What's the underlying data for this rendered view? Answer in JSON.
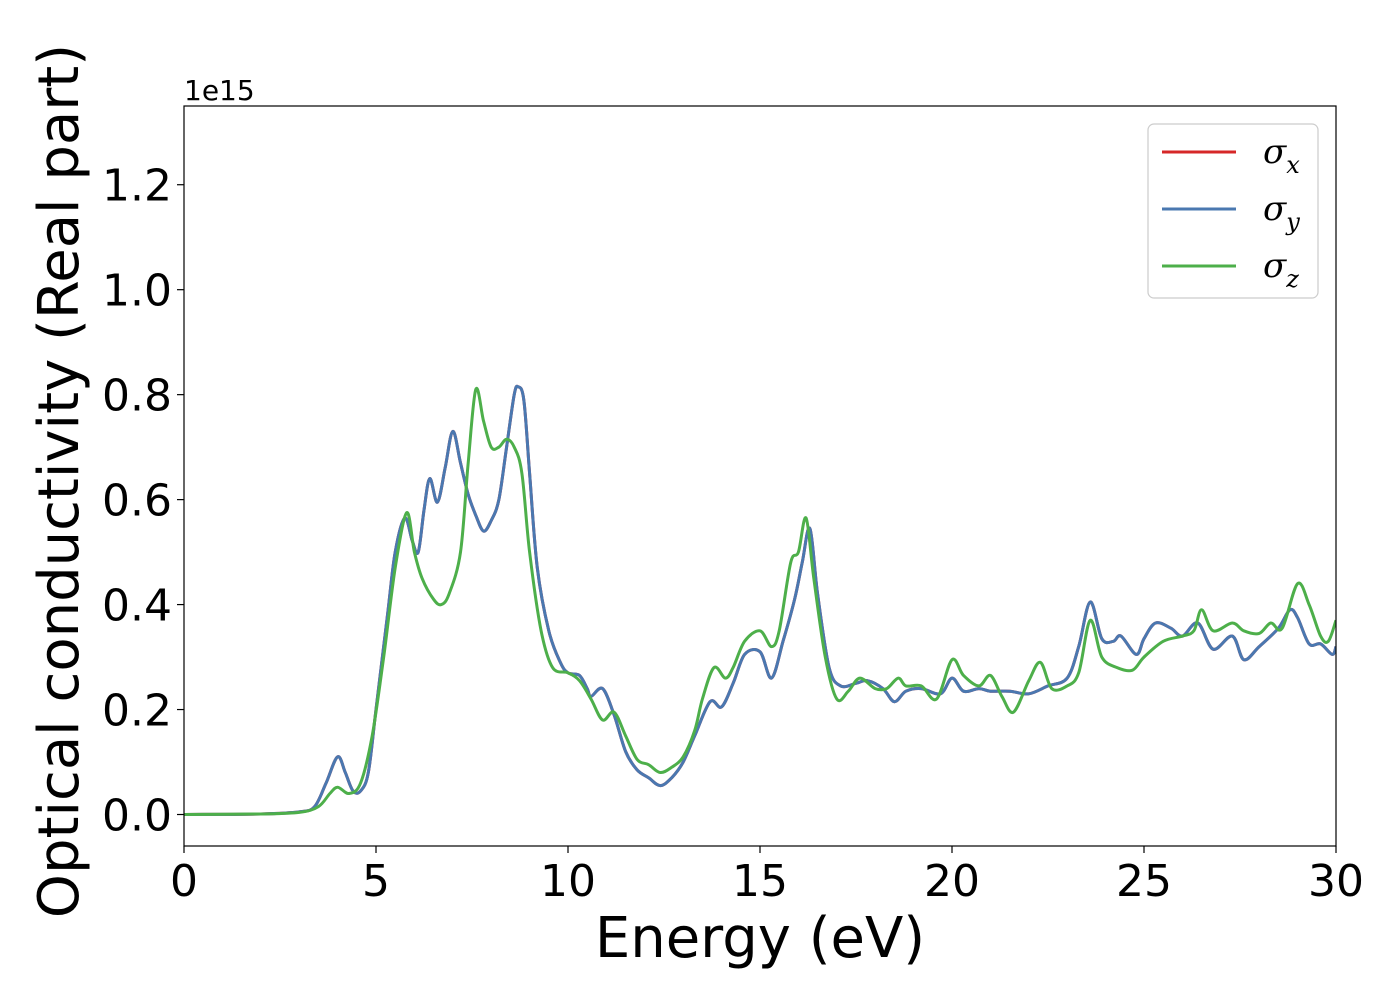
{
  "chart_data": {
    "type": "line",
    "xlabel": "Energy (eV)",
    "ylabel": "Optical conductivity (Real part)",
    "offset_text": "1e15",
    "xlim": [
      0,
      30
    ],
    "ylim": [
      -0.06,
      1.35
    ],
    "x_ticks": [
      0,
      5,
      10,
      15,
      20,
      25,
      30
    ],
    "x_tick_labels": [
      "0",
      "5",
      "10",
      "15",
      "20",
      "25",
      "30"
    ],
    "y_ticks": [
      0.0,
      0.2,
      0.4,
      0.6,
      0.8,
      1.0,
      1.2
    ],
    "y_tick_labels": [
      "0.0",
      "0.2",
      "0.4",
      "0.6",
      "0.8",
      "1.0",
      "1.2"
    ],
    "grid": false,
    "legend_position": "top-right",
    "series": [
      {
        "name": "σx",
        "label_main": "σ",
        "label_sub": "x",
        "color": "#d62728",
        "points": [
          [
            0,
            0.0
          ],
          [
            2,
            0.001
          ],
          [
            3,
            0.005
          ],
          [
            3.4,
            0.015
          ],
          [
            3.7,
            0.06
          ],
          [
            4.0,
            0.11
          ],
          [
            4.2,
            0.08
          ],
          [
            4.4,
            0.045
          ],
          [
            4.6,
            0.045
          ],
          [
            4.8,
            0.08
          ],
          [
            5.0,
            0.2
          ],
          [
            5.3,
            0.38
          ],
          [
            5.5,
            0.5
          ],
          [
            5.75,
            0.565
          ],
          [
            5.95,
            0.52
          ],
          [
            6.1,
            0.5
          ],
          [
            6.25,
            0.58
          ],
          [
            6.4,
            0.64
          ],
          [
            6.6,
            0.595
          ],
          [
            6.8,
            0.66
          ],
          [
            7.0,
            0.73
          ],
          [
            7.2,
            0.67
          ],
          [
            7.4,
            0.61
          ],
          [
            7.6,
            0.57
          ],
          [
            7.8,
            0.54
          ],
          [
            8.0,
            0.56
          ],
          [
            8.2,
            0.6
          ],
          [
            8.4,
            0.7
          ],
          [
            8.6,
            0.8
          ],
          [
            8.7,
            0.815
          ],
          [
            8.85,
            0.79
          ],
          [
            9.0,
            0.65
          ],
          [
            9.2,
            0.47
          ],
          [
            9.5,
            0.35
          ],
          [
            9.8,
            0.29
          ],
          [
            10.0,
            0.27
          ],
          [
            10.3,
            0.265
          ],
          [
            10.5,
            0.24
          ],
          [
            10.6,
            0.225
          ],
          [
            10.9,
            0.24
          ],
          [
            11.2,
            0.19
          ],
          [
            11.5,
            0.12
          ],
          [
            11.8,
            0.085
          ],
          [
            12.1,
            0.07
          ],
          [
            12.4,
            0.055
          ],
          [
            12.7,
            0.07
          ],
          [
            13.0,
            0.1
          ],
          [
            13.3,
            0.15
          ],
          [
            13.7,
            0.215
          ],
          [
            14.0,
            0.205
          ],
          [
            14.3,
            0.25
          ],
          [
            14.6,
            0.305
          ],
          [
            15.0,
            0.31
          ],
          [
            15.3,
            0.26
          ],
          [
            15.6,
            0.33
          ],
          [
            15.9,
            0.41
          ],
          [
            16.1,
            0.48
          ],
          [
            16.3,
            0.545
          ],
          [
            16.5,
            0.42
          ],
          [
            16.8,
            0.28
          ],
          [
            17.1,
            0.245
          ],
          [
            17.5,
            0.25
          ],
          [
            17.8,
            0.255
          ],
          [
            18.2,
            0.24
          ],
          [
            18.5,
            0.215
          ],
          [
            18.8,
            0.235
          ],
          [
            19.2,
            0.24
          ],
          [
            19.7,
            0.23
          ],
          [
            20.0,
            0.26
          ],
          [
            20.3,
            0.235
          ],
          [
            20.7,
            0.24
          ],
          [
            21.0,
            0.235
          ],
          [
            21.5,
            0.235
          ],
          [
            22.0,
            0.23
          ],
          [
            22.5,
            0.245
          ],
          [
            23.0,
            0.26
          ],
          [
            23.3,
            0.32
          ],
          [
            23.6,
            0.405
          ],
          [
            23.9,
            0.335
          ],
          [
            24.2,
            0.33
          ],
          [
            24.4,
            0.34
          ],
          [
            24.8,
            0.305
          ],
          [
            25.0,
            0.335
          ],
          [
            25.3,
            0.365
          ],
          [
            25.7,
            0.355
          ],
          [
            26.0,
            0.34
          ],
          [
            26.4,
            0.365
          ],
          [
            26.8,
            0.315
          ],
          [
            27.3,
            0.34
          ],
          [
            27.6,
            0.295
          ],
          [
            28.0,
            0.32
          ],
          [
            28.5,
            0.355
          ],
          [
            28.8,
            0.39
          ],
          [
            29.0,
            0.375
          ],
          [
            29.3,
            0.325
          ],
          [
            29.6,
            0.325
          ],
          [
            29.9,
            0.305
          ],
          [
            30.0,
            0.32
          ]
        ]
      },
      {
        "name": "σy",
        "label_main": "σ",
        "label_sub": "y",
        "color": "#4a78b0",
        "points": [
          [
            0,
            0.0
          ],
          [
            2,
            0.001
          ],
          [
            3,
            0.005
          ],
          [
            3.4,
            0.015
          ],
          [
            3.7,
            0.06
          ],
          [
            4.0,
            0.11
          ],
          [
            4.2,
            0.08
          ],
          [
            4.4,
            0.045
          ],
          [
            4.6,
            0.045
          ],
          [
            4.8,
            0.08
          ],
          [
            5.0,
            0.2
          ],
          [
            5.3,
            0.38
          ],
          [
            5.5,
            0.5
          ],
          [
            5.75,
            0.565
          ],
          [
            5.95,
            0.52
          ],
          [
            6.1,
            0.5
          ],
          [
            6.25,
            0.58
          ],
          [
            6.4,
            0.64
          ],
          [
            6.6,
            0.595
          ],
          [
            6.8,
            0.66
          ],
          [
            7.0,
            0.73
          ],
          [
            7.2,
            0.67
          ],
          [
            7.4,
            0.61
          ],
          [
            7.6,
            0.57
          ],
          [
            7.8,
            0.54
          ],
          [
            8.0,
            0.56
          ],
          [
            8.2,
            0.6
          ],
          [
            8.4,
            0.7
          ],
          [
            8.6,
            0.8
          ],
          [
            8.7,
            0.815
          ],
          [
            8.85,
            0.79
          ],
          [
            9.0,
            0.65
          ],
          [
            9.2,
            0.47
          ],
          [
            9.5,
            0.35
          ],
          [
            9.8,
            0.29
          ],
          [
            10.0,
            0.27
          ],
          [
            10.3,
            0.265
          ],
          [
            10.5,
            0.24
          ],
          [
            10.6,
            0.225
          ],
          [
            10.9,
            0.24
          ],
          [
            11.2,
            0.19
          ],
          [
            11.5,
            0.12
          ],
          [
            11.8,
            0.085
          ],
          [
            12.1,
            0.07
          ],
          [
            12.4,
            0.055
          ],
          [
            12.7,
            0.07
          ],
          [
            13.0,
            0.1
          ],
          [
            13.3,
            0.15
          ],
          [
            13.7,
            0.215
          ],
          [
            14.0,
            0.205
          ],
          [
            14.3,
            0.25
          ],
          [
            14.6,
            0.305
          ],
          [
            15.0,
            0.31
          ],
          [
            15.3,
            0.26
          ],
          [
            15.6,
            0.33
          ],
          [
            15.9,
            0.41
          ],
          [
            16.1,
            0.48
          ],
          [
            16.3,
            0.545
          ],
          [
            16.5,
            0.42
          ],
          [
            16.8,
            0.28
          ],
          [
            17.1,
            0.245
          ],
          [
            17.5,
            0.25
          ],
          [
            17.8,
            0.255
          ],
          [
            18.2,
            0.24
          ],
          [
            18.5,
            0.215
          ],
          [
            18.8,
            0.235
          ],
          [
            19.2,
            0.24
          ],
          [
            19.7,
            0.23
          ],
          [
            20.0,
            0.26
          ],
          [
            20.3,
            0.235
          ],
          [
            20.7,
            0.24
          ],
          [
            21.0,
            0.235
          ],
          [
            21.5,
            0.235
          ],
          [
            22.0,
            0.23
          ],
          [
            22.5,
            0.245
          ],
          [
            23.0,
            0.26
          ],
          [
            23.3,
            0.32
          ],
          [
            23.6,
            0.405
          ],
          [
            23.9,
            0.335
          ],
          [
            24.2,
            0.33
          ],
          [
            24.4,
            0.34
          ],
          [
            24.8,
            0.305
          ],
          [
            25.0,
            0.335
          ],
          [
            25.3,
            0.365
          ],
          [
            25.7,
            0.355
          ],
          [
            26.0,
            0.34
          ],
          [
            26.4,
            0.365
          ],
          [
            26.8,
            0.315
          ],
          [
            27.3,
            0.34
          ],
          [
            27.6,
            0.295
          ],
          [
            28.0,
            0.32
          ],
          [
            28.5,
            0.355
          ],
          [
            28.8,
            0.39
          ],
          [
            29.0,
            0.375
          ],
          [
            29.3,
            0.325
          ],
          [
            29.6,
            0.325
          ],
          [
            29.9,
            0.305
          ],
          [
            30.0,
            0.32
          ]
        ]
      },
      {
        "name": "σz",
        "label_main": "σ",
        "label_sub": "z",
        "color": "#4daf4a",
        "points": [
          [
            0,
            0.0
          ],
          [
            2,
            0.001
          ],
          [
            3,
            0.004
          ],
          [
            3.5,
            0.015
          ],
          [
            3.8,
            0.04
          ],
          [
            4.0,
            0.052
          ],
          [
            4.3,
            0.04
          ],
          [
            4.6,
            0.06
          ],
          [
            4.9,
            0.15
          ],
          [
            5.2,
            0.3
          ],
          [
            5.5,
            0.47
          ],
          [
            5.8,
            0.575
          ],
          [
            6.0,
            0.5
          ],
          [
            6.2,
            0.45
          ],
          [
            6.5,
            0.41
          ],
          [
            6.7,
            0.4
          ],
          [
            6.9,
            0.42
          ],
          [
            7.2,
            0.5
          ],
          [
            7.4,
            0.67
          ],
          [
            7.6,
            0.81
          ],
          [
            7.8,
            0.75
          ],
          [
            8.0,
            0.7
          ],
          [
            8.2,
            0.7
          ],
          [
            8.4,
            0.715
          ],
          [
            8.6,
            0.7
          ],
          [
            8.8,
            0.65
          ],
          [
            9.0,
            0.5
          ],
          [
            9.3,
            0.35
          ],
          [
            9.6,
            0.28
          ],
          [
            10.0,
            0.27
          ],
          [
            10.3,
            0.255
          ],
          [
            10.6,
            0.22
          ],
          [
            10.9,
            0.18
          ],
          [
            11.2,
            0.195
          ],
          [
            11.5,
            0.15
          ],
          [
            11.8,
            0.105
          ],
          [
            12.1,
            0.095
          ],
          [
            12.4,
            0.08
          ],
          [
            12.7,
            0.09
          ],
          [
            13.0,
            0.11
          ],
          [
            13.3,
            0.16
          ],
          [
            13.5,
            0.22
          ],
          [
            13.8,
            0.28
          ],
          [
            14.1,
            0.26
          ],
          [
            14.3,
            0.28
          ],
          [
            14.6,
            0.33
          ],
          [
            15.0,
            0.35
          ],
          [
            15.3,
            0.32
          ],
          [
            15.5,
            0.35
          ],
          [
            15.8,
            0.48
          ],
          [
            16.0,
            0.5
          ],
          [
            16.2,
            0.565
          ],
          [
            16.4,
            0.45
          ],
          [
            16.7,
            0.3
          ],
          [
            17.0,
            0.22
          ],
          [
            17.3,
            0.235
          ],
          [
            17.6,
            0.26
          ],
          [
            18.0,
            0.24
          ],
          [
            18.3,
            0.24
          ],
          [
            18.6,
            0.26
          ],
          [
            18.8,
            0.245
          ],
          [
            19.2,
            0.245
          ],
          [
            19.6,
            0.22
          ],
          [
            20.0,
            0.295
          ],
          [
            20.3,
            0.265
          ],
          [
            20.7,
            0.245
          ],
          [
            21.0,
            0.265
          ],
          [
            21.3,
            0.225
          ],
          [
            21.6,
            0.195
          ],
          [
            22.0,
            0.255
          ],
          [
            22.3,
            0.29
          ],
          [
            22.6,
            0.24
          ],
          [
            23.0,
            0.245
          ],
          [
            23.3,
            0.27
          ],
          [
            23.6,
            0.37
          ],
          [
            23.9,
            0.3
          ],
          [
            24.3,
            0.28
          ],
          [
            24.7,
            0.275
          ],
          [
            25.0,
            0.3
          ],
          [
            25.5,
            0.33
          ],
          [
            26.0,
            0.34
          ],
          [
            26.3,
            0.35
          ],
          [
            26.5,
            0.39
          ],
          [
            26.8,
            0.35
          ],
          [
            27.3,
            0.365
          ],
          [
            27.6,
            0.35
          ],
          [
            28.0,
            0.345
          ],
          [
            28.3,
            0.365
          ],
          [
            28.6,
            0.355
          ],
          [
            29.0,
            0.44
          ],
          [
            29.3,
            0.4
          ],
          [
            29.6,
            0.34
          ],
          [
            29.8,
            0.33
          ],
          [
            30.0,
            0.37
          ]
        ]
      }
    ]
  }
}
